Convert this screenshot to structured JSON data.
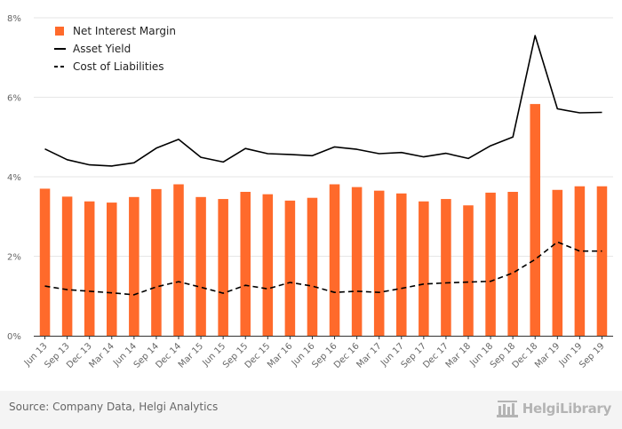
{
  "chart_data": {
    "type": "bar",
    "categories": [
      "Jun 13",
      "Sep 13",
      "Dec 13",
      "Mar 14",
      "Jun 14",
      "Sep 14",
      "Dec 14",
      "Mar 15",
      "Jun 15",
      "Sep 15",
      "Dec 15",
      "Mar 16",
      "Jun 16",
      "Sep 16",
      "Dec 16",
      "Mar 17",
      "Jun 17",
      "Sep 17",
      "Dec 17",
      "Mar 18",
      "Jun 18",
      "Sep 18",
      "Dec 18",
      "Mar 19",
      "Jun 19",
      "Sep 19"
    ],
    "series": [
      {
        "name": "Net Interest Margin",
        "type": "bar",
        "color": "#ff6a2b",
        "values": [
          3.7,
          3.5,
          3.38,
          3.35,
          3.49,
          3.69,
          3.81,
          3.49,
          3.44,
          3.62,
          3.56,
          3.4,
          3.47,
          3.81,
          3.74,
          3.65,
          3.58,
          3.38,
          3.44,
          3.28,
          3.6,
          3.62,
          5.83,
          3.67,
          3.76,
          3.76
        ]
      },
      {
        "name": "Asset Yield",
        "type": "line",
        "style": "solid",
        "color": "#000000",
        "values": [
          4.7,
          4.43,
          4.3,
          4.27,
          4.35,
          4.72,
          4.94,
          4.49,
          4.37,
          4.71,
          4.58,
          4.56,
          4.53,
          4.75,
          4.69,
          4.58,
          4.61,
          4.5,
          4.59,
          4.46,
          4.78,
          5.0,
          7.55,
          5.71,
          5.61,
          5.62
        ]
      },
      {
        "name": "Cost of Liabilities",
        "type": "line",
        "style": "dashed",
        "color": "#000000",
        "values": [
          1.25,
          1.16,
          1.12,
          1.08,
          1.03,
          1.23,
          1.36,
          1.22,
          1.07,
          1.27,
          1.18,
          1.34,
          1.25,
          1.09,
          1.12,
          1.09,
          1.19,
          1.3,
          1.33,
          1.35,
          1.37,
          1.58,
          1.92,
          2.36,
          2.13,
          2.13
        ]
      }
    ],
    "y_ticks": [
      "0%",
      "2%",
      "4%",
      "6%",
      "8%"
    ],
    "ylim": [
      0,
      8
    ],
    "grid": true,
    "legend": "top-left"
  },
  "footer": {
    "source": "Source: Company Data, Helgi Analytics",
    "logo_text": "HelgiLibrary"
  }
}
